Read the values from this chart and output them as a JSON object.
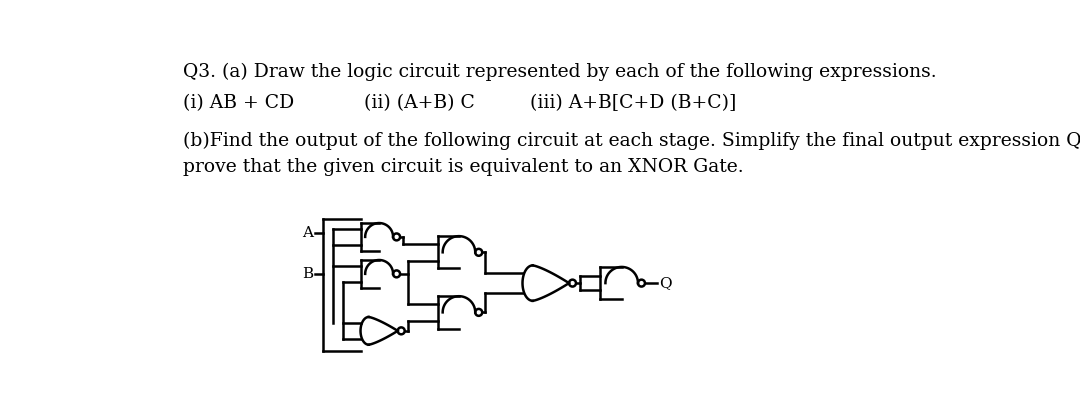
{
  "title_line1": "Q3. (a) Draw the logic circuit represented by each of the following expressions.",
  "subtitle_items": [
    "(i) AB + CD",
    "(ii) (A+B) C",
    "(iii) A+B[C+D (B+C)]"
  ],
  "part_b_line1": "(b)Find the output of the following circuit at each stage. Simplify the final output expression Q, and",
  "part_b_line2": "prove that the given circuit is equivalent to an XNOR Gate.",
  "bg_color": "#ffffff",
  "text_color": "#000000",
  "font_size": 13.5
}
